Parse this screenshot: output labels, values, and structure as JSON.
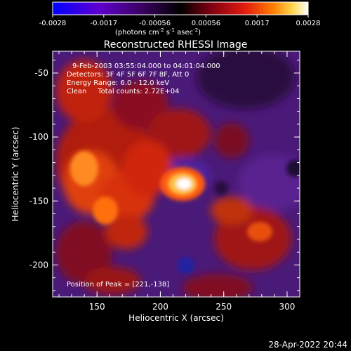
{
  "colorbar": {
    "ticks": [
      "-0.0028",
      "-0.0017",
      "-0.00056",
      "0.00056",
      "0.0017",
      "0.0028"
    ],
    "units_main": "(photons cm",
    "units_sup1": "-2",
    "units_mid": " s",
    "units_sup2": "-1",
    "units_mid2": " asec",
    "units_sup3": "-2",
    "units_end": ")",
    "colors": [
      "#0000ff",
      "#5a00c8",
      "#3a006a",
      "#000000",
      "#7a0008",
      "#d01010",
      "#ff6a00",
      "#ffd040",
      "#ffffff"
    ]
  },
  "plot": {
    "title": "Reconstructed RHESSI Image",
    "info_lines": [
      "9-Feb-2003 03:55:04.000 to 04:01:04.000",
      "Detectors: 3F 4F 5F 6F 7F 8F, Att 0",
      "Energy Range: 6.0 - 12.0 keV",
      "Clean     Total counts: 2.72E+04"
    ],
    "peak_label": "Position of Peak = [221,-138]",
    "xlabel": "Heliocentric X (arcsec)",
    "ylabel": "Heliocentric Y (arcsec)",
    "xticks": [
      "150",
      "200",
      "250",
      "300"
    ],
    "yticks": [
      "-50",
      "-100",
      "-150",
      "-200"
    ],
    "xlim": [
      115,
      310
    ],
    "ylim": [
      -225,
      -33
    ]
  },
  "timestamp": "28-Apr-2022 20:44"
}
